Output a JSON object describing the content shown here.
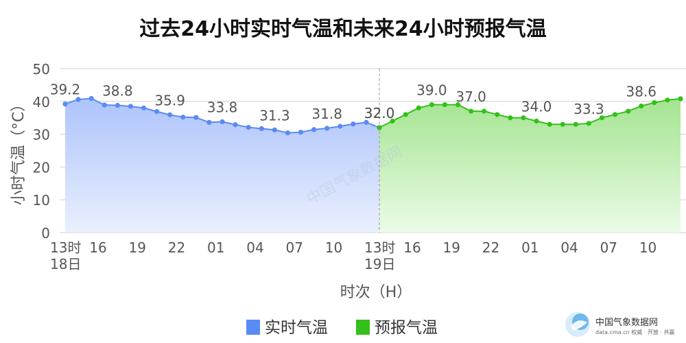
{
  "chart_data": {
    "type": "area",
    "title": "过去24小时实时气温和未来24小时预报气温",
    "ylabel": "小时气温（°C）",
    "xlabel": "时次（H）",
    "ylim": [
      0,
      50
    ],
    "yticks": [
      "0",
      "10",
      "20",
      "30",
      "40",
      "50"
    ],
    "grid": true,
    "legend_position": "bottom",
    "x_tick_labels": [
      {
        "hour_index": 0,
        "lines": [
          "13时",
          "18日"
        ]
      },
      {
        "hour_index": 3,
        "lines": [
          "16"
        ]
      },
      {
        "hour_index": 6,
        "lines": [
          "19"
        ]
      },
      {
        "hour_index": 9,
        "lines": [
          "22"
        ]
      },
      {
        "hour_index": 12,
        "lines": [
          "01"
        ]
      },
      {
        "hour_index": 15,
        "lines": [
          "04"
        ]
      },
      {
        "hour_index": 18,
        "lines": [
          "07"
        ]
      },
      {
        "hour_index": 21,
        "lines": [
          "10"
        ]
      },
      {
        "hour_index": 24,
        "lines": [
          "13时",
          "19日"
        ]
      },
      {
        "hour_index": 27,
        "lines": [
          "16"
        ]
      },
      {
        "hour_index": 30,
        "lines": [
          "19"
        ]
      },
      {
        "hour_index": 33,
        "lines": [
          "22"
        ]
      },
      {
        "hour_index": 36,
        "lines": [
          "01"
        ]
      },
      {
        "hour_index": 39,
        "lines": [
          "04"
        ]
      },
      {
        "hour_index": 42,
        "lines": [
          "07"
        ]
      },
      {
        "hour_index": 45,
        "lines": [
          "10"
        ]
      }
    ],
    "series": [
      {
        "name": "实时气温",
        "color": "#5a8af5",
        "values": [
          39.2,
          40.6,
          40.9,
          38.9,
          38.8,
          38.5,
          38.0,
          36.9,
          35.9,
          35.2,
          35.1,
          33.6,
          33.8,
          32.9,
          32.1,
          31.7,
          31.3,
          30.4,
          30.6,
          31.4,
          31.8,
          32.4,
          33.1,
          33.6,
          32.0
        ],
        "labels": [
          {
            "hour_index": 0,
            "text": "39.2"
          },
          {
            "hour_index": 4,
            "text": "38.8"
          },
          {
            "hour_index": 8,
            "text": "35.9"
          },
          {
            "hour_index": 12,
            "text": "33.8"
          },
          {
            "hour_index": 16,
            "text": "31.3"
          },
          {
            "hour_index": 20,
            "text": "31.8"
          },
          {
            "hour_index": 24,
            "text": "32.0"
          }
        ]
      },
      {
        "name": "预报气温",
        "color": "#33c01a",
        "values": [
          32.0,
          34.0,
          36.0,
          38.0,
          39.0,
          39.0,
          39.0,
          37.0,
          37.0,
          36.0,
          35.0,
          35.0,
          34.0,
          33.0,
          33.0,
          33.0,
          33.3,
          35.0,
          36.0,
          37.0,
          38.6,
          39.6,
          40.4,
          40.8
        ],
        "labels": [
          {
            "hour_index": 24,
            "text": "32.0"
          },
          {
            "hour_index": 28,
            "text": "39.0"
          },
          {
            "hour_index": 31,
            "text": "37.0"
          },
          {
            "hour_index": 36,
            "text": "34.0"
          },
          {
            "hour_index": 40,
            "text": "33.3"
          },
          {
            "hour_index": 44,
            "text": "38.6"
          }
        ]
      }
    ],
    "divider_hour_index": 24
  },
  "watermark": "中国气象数据网",
  "logo": {
    "name": "中国气象数据网",
    "sub": "data.cma.cn 权威 · 开放 · 共赢"
  }
}
